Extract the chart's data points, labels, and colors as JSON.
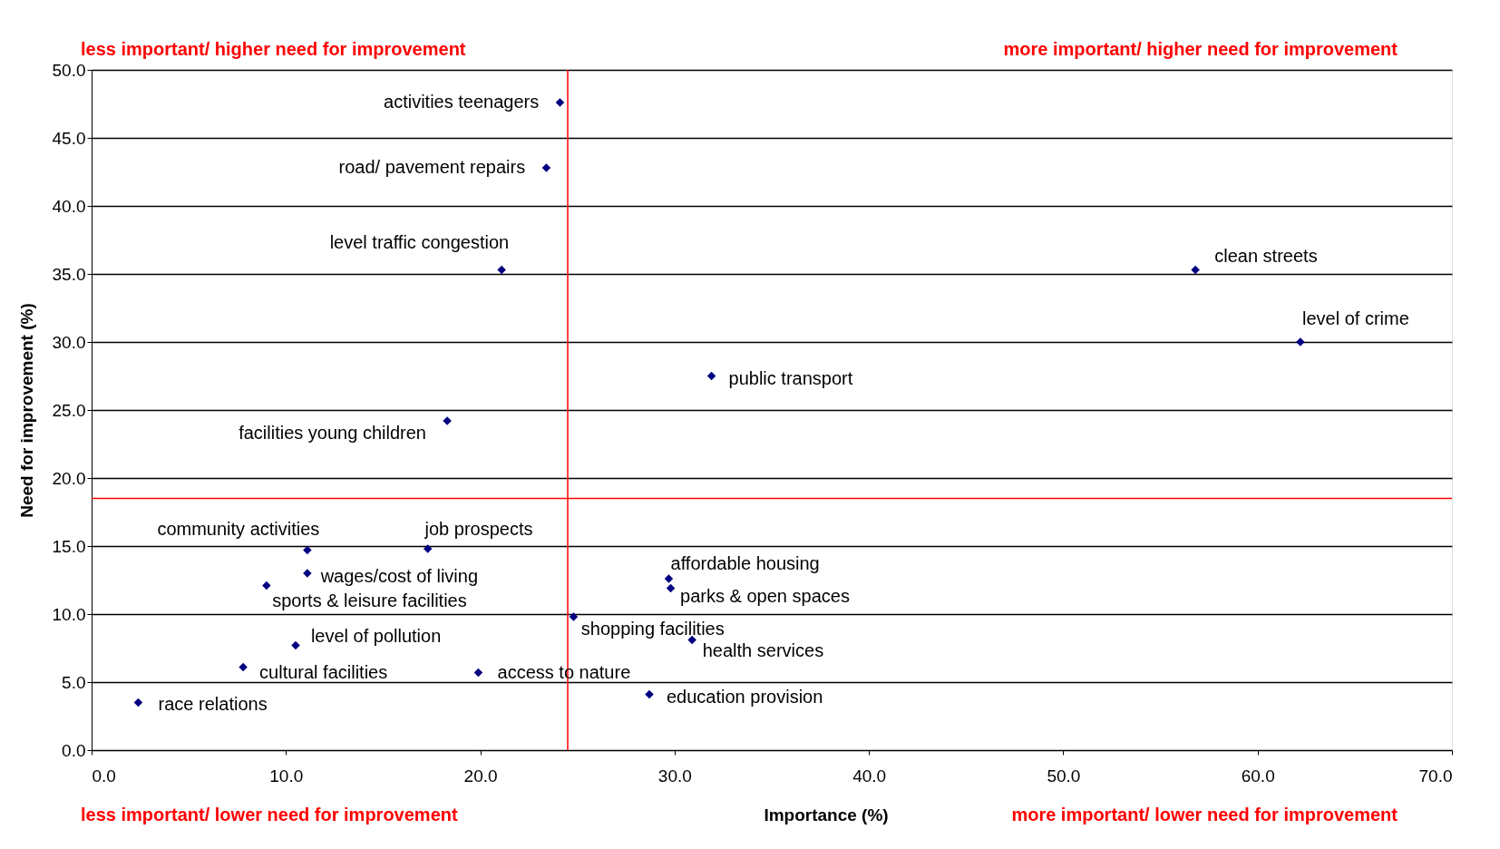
{
  "chart_data": {
    "type": "scatter",
    "xlabel": "Importance (%)",
    "ylabel": "Need for improvement (%)",
    "series": [
      {
        "color": "#000080",
        "x": [
          24.1,
          23.4,
          21.1,
          56.8,
          62.2,
          31.9,
          18.3,
          11.1,
          17.3,
          11.1,
          9.0,
          29.7,
          29.8,
          24.8,
          10.5,
          30.9,
          7.8,
          19.9,
          28.7,
          2.4
        ],
        "values": [
          47.6,
          42.8,
          35.3,
          35.3,
          30.0,
          27.5,
          24.2,
          14.7,
          14.8,
          13.0,
          12.1,
          12.6,
          11.9,
          9.8,
          7.7,
          8.1,
          6.1,
          5.7,
          4.1,
          3.5
        ]
      }
    ],
    "annotations": [
      {
        "text": "activities teenagers",
        "x": 24.1,
        "y": 47.6
      },
      {
        "text": "road/ pavement repairs",
        "x": 23.4,
        "y": 42.8
      },
      {
        "text": "level traffic congestion",
        "x": 21.1,
        "y": 35.3
      },
      {
        "text": "clean streets",
        "x": 56.8,
        "y": 35.3
      },
      {
        "text": "level of crime",
        "x": 62.2,
        "y": 30.0
      },
      {
        "text": "public transport",
        "x": 31.9,
        "y": 27.5
      },
      {
        "text": "facilities young children",
        "x": 18.3,
        "y": 24.2
      },
      {
        "text": "community activities",
        "x": 11.1,
        "y": 14.7
      },
      {
        "text": "job prospects",
        "x": 17.3,
        "y": 14.8
      },
      {
        "text": "wages/cost of living",
        "x": 11.1,
        "y": 13.0
      },
      {
        "text": "sports & leisure facilities",
        "x": 9.0,
        "y": 12.1
      },
      {
        "text": "affordable housing",
        "x": 29.7,
        "y": 12.6
      },
      {
        "text": "parks & open spaces",
        "x": 29.8,
        "y": 11.9
      },
      {
        "text": "shopping facilities",
        "x": 24.8,
        "y": 9.8
      },
      {
        "text": "level of pollution",
        "x": 10.5,
        "y": 7.7
      },
      {
        "text": "health services",
        "x": 30.9,
        "y": 8.1
      },
      {
        "text": "cultural facilities",
        "x": 7.8,
        "y": 6.1
      },
      {
        "text": "access to nature",
        "x": 19.9,
        "y": 5.7
      },
      {
        "text": "education provision",
        "x": 28.7,
        "y": 4.1
      },
      {
        "text": "race relations",
        "x": 2.4,
        "y": 3.5
      },
      "less important/ higher need for improvement",
      "more important/ higher need for improvement",
      "less important/ lower need for improvement",
      "more important/ lower need for improvement"
    ],
    "ref_lines": [
      {
        "axis": "x",
        "value": 24.5,
        "color": "#ff0000"
      },
      {
        "axis": "y",
        "value": 18.5,
        "color": "#ff0000"
      }
    ],
    "xlim": [
      0,
      70
    ],
    "ylim": [
      0,
      50
    ],
    "xticks": [
      {
        "value": 0,
        "label": "0.0"
      },
      {
        "value": 10,
        "label": "10.0"
      },
      {
        "value": 20,
        "label": "20.0"
      },
      {
        "value": 30,
        "label": "30.0"
      },
      {
        "value": 40,
        "label": "40.0"
      },
      {
        "value": 50,
        "label": "50.0"
      },
      {
        "value": 60,
        "label": "60.0"
      },
      {
        "value": 70,
        "label": "70.0"
      }
    ],
    "yticks": [
      {
        "value": 0,
        "label": "0.0"
      },
      {
        "value": 5,
        "label": "5.0"
      },
      {
        "value": 10,
        "label": "10.0"
      },
      {
        "value": 15,
        "label": "15.0"
      },
      {
        "value": 20,
        "label": "20.0"
      },
      {
        "value": 25,
        "label": "25.0"
      },
      {
        "value": 30,
        "label": "30.0"
      },
      {
        "value": 35,
        "label": "35.0"
      },
      {
        "value": 40,
        "label": "40.0"
      },
      {
        "value": 45,
        "label": "45.0"
      },
      {
        "value": 50,
        "label": "50.0"
      }
    ],
    "grid": "y",
    "marker": "diamond"
  }
}
